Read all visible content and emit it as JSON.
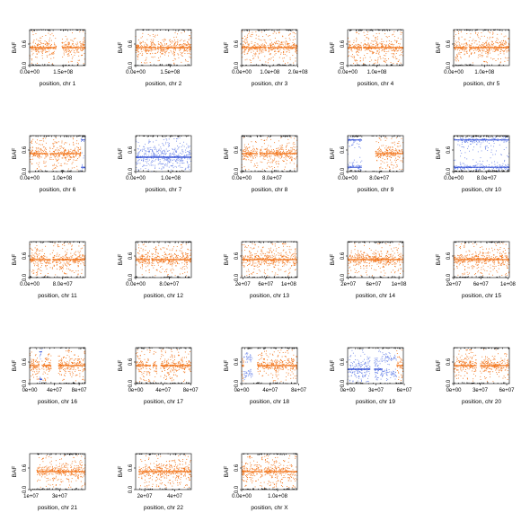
{
  "colors": {
    "orange": "#f27318",
    "blue": "#6b85e8",
    "black": "#000000",
    "axis": "#000000"
  },
  "chart_data": [
    {
      "type": "scatter",
      "chrom": "1",
      "xlabel": "position, chr 1",
      "ylabel": "BAF",
      "xlim": [
        0,
        250000000
      ],
      "ylim": [
        0,
        1
      ],
      "yticks": [
        0,
        0.6
      ],
      "yticklabels": [
        "0.0",
        "0.6"
      ],
      "xticks": [
        0,
        150000000
      ],
      "xticklabels": [
        "0.0e+00",
        "1.5e+08"
      ],
      "segments": [
        {
          "start": 0,
          "end": 120000000,
          "state": "het"
        },
        {
          "start": 120000000,
          "end": 145000000,
          "state": "gap"
        },
        {
          "start": 145000000,
          "end": 250000000,
          "state": "het"
        }
      ]
    },
    {
      "type": "scatter",
      "chrom": "2",
      "xlabel": "position, chr 2",
      "ylabel": "BAF",
      "xlim": [
        0,
        243000000
      ],
      "ylim": [
        0,
        1
      ],
      "yticks": [
        0,
        0.6
      ],
      "yticklabels": [
        "0.0",
        "0.6"
      ],
      "xticks": [
        0,
        150000000
      ],
      "xticklabels": [
        "0.0e+00",
        "1.5e+08"
      ],
      "segments": [
        {
          "start": 0,
          "end": 90000000,
          "state": "het"
        },
        {
          "start": 90000000,
          "end": 95000000,
          "state": "gap"
        },
        {
          "start": 95000000,
          "end": 243000000,
          "state": "het"
        }
      ]
    },
    {
      "type": "scatter",
      "chrom": "3",
      "xlabel": "position, chr 3",
      "ylabel": "BAF",
      "xlim": [
        0,
        198000000
      ],
      "ylim": [
        0,
        1
      ],
      "yticks": [
        0,
        0.6
      ],
      "yticklabels": [
        "0.0",
        "0.6"
      ],
      "xticks": [
        0,
        100000000,
        200000000
      ],
      "xticklabels": [
        "0.0e+00",
        "1.0e+08",
        "2.0e+08"
      ],
      "segments": [
        {
          "start": 0,
          "end": 88000000,
          "state": "het"
        },
        {
          "start": 88000000,
          "end": 93000000,
          "state": "gap"
        },
        {
          "start": 93000000,
          "end": 198000000,
          "state": "het"
        }
      ]
    },
    {
      "type": "scatter",
      "chrom": "4",
      "xlabel": "position, chr 4",
      "ylabel": "BAF",
      "xlim": [
        0,
        191000000
      ],
      "ylim": [
        0,
        1
      ],
      "yticks": [
        0,
        0.6
      ],
      "yticklabels": [
        "0.0",
        "0.6"
      ],
      "xticks": [
        0,
        100000000
      ],
      "xticklabels": [
        "0.0e+00",
        "1.0e+08"
      ],
      "segments": [
        {
          "start": 0,
          "end": 48000000,
          "state": "het"
        },
        {
          "start": 48000000,
          "end": 52000000,
          "state": "gap"
        },
        {
          "start": 52000000,
          "end": 191000000,
          "state": "het"
        }
      ]
    },
    {
      "type": "scatter",
      "chrom": "5",
      "xlabel": "position, chr 5",
      "ylabel": "BAF",
      "xlim": [
        0,
        181000000
      ],
      "ylim": [
        0,
        1
      ],
      "yticks": [
        0,
        0.6
      ],
      "yticklabels": [
        "0.0",
        "0.6"
      ],
      "xticks": [
        0,
        100000000
      ],
      "xticklabels": [
        "0.0e+00",
        "1.0e+08"
      ],
      "segments": [
        {
          "start": 0,
          "end": 45000000,
          "state": "het"
        },
        {
          "start": 45000000,
          "end": 50000000,
          "state": "gap"
        },
        {
          "start": 50000000,
          "end": 181000000,
          "state": "het"
        }
      ]
    },
    {
      "type": "scatter",
      "chrom": "6",
      "xlabel": "position, chr 6",
      "ylabel": "BAF",
      "xlim": [
        0,
        171000000
      ],
      "ylim": [
        0,
        1
      ],
      "yticks": [
        0,
        0.6
      ],
      "yticklabels": [
        "0.0",
        "0.6"
      ],
      "xticks": [
        0,
        100000000
      ],
      "xticklabels": [
        "0.0e+00",
        "1.0e+08"
      ],
      "segments": [
        {
          "start": 0,
          "end": 56000000,
          "state": "het"
        },
        {
          "start": 56000000,
          "end": 62000000,
          "state": "gap"
        },
        {
          "start": 62000000,
          "end": 158000000,
          "state": "het"
        },
        {
          "start": 158000000,
          "end": 171000000,
          "state": "loh"
        }
      ]
    },
    {
      "type": "scatter",
      "chrom": "7",
      "xlabel": "position, chr 7",
      "ylabel": "BAF",
      "xlim": [
        0,
        159000000
      ],
      "ylim": [
        0,
        1
      ],
      "yticks": [
        0,
        0.6
      ],
      "yticklabels": [
        "0.0",
        "0.6"
      ],
      "xticks": [
        0,
        100000000
      ],
      "xticklabels": [
        "0.0e+00",
        "1.0e+08"
      ],
      "segments": [
        {
          "start": 0,
          "end": 159000000,
          "state": "blue_mid"
        }
      ]
    },
    {
      "type": "scatter",
      "chrom": "8",
      "xlabel": "position, chr 8",
      "ylabel": "BAF",
      "xlim": [
        0,
        146000000
      ],
      "ylim": [
        0,
        1
      ],
      "yticks": [
        0,
        0.6
      ],
      "yticklabels": [
        "0.0",
        "0.6"
      ],
      "xticks": [
        0,
        80000000
      ],
      "xticklabels": [
        "0.0e+00",
        "8.0e+07"
      ],
      "segments": [
        {
          "start": 0,
          "end": 42000000,
          "state": "het"
        },
        {
          "start": 42000000,
          "end": 47000000,
          "state": "gap"
        },
        {
          "start": 47000000,
          "end": 146000000,
          "state": "het"
        }
      ]
    },
    {
      "type": "scatter",
      "chrom": "9",
      "xlabel": "position, chr 9",
      "ylabel": "BAF",
      "xlim": [
        0,
        141000000
      ],
      "ylim": [
        0,
        1
      ],
      "yticks": [
        0,
        0.6
      ],
      "yticklabels": [
        "0.0",
        "0.6"
      ],
      "xticks": [
        0,
        80000000
      ],
      "xticklabels": [
        "0.0e+00",
        "8.0e+07"
      ],
      "segments": [
        {
          "start": 0,
          "end": 36000000,
          "state": "loh"
        },
        {
          "start": 36000000,
          "end": 70000000,
          "state": "gap"
        },
        {
          "start": 70000000,
          "end": 141000000,
          "state": "het"
        }
      ]
    },
    {
      "type": "scatter",
      "chrom": "10",
      "xlabel": "position, chr 10",
      "ylabel": "BAF",
      "xlim": [
        0,
        135000000
      ],
      "ylim": [
        0,
        1
      ],
      "yticks": [
        0,
        0.6
      ],
      "yticklabels": [
        "0.0",
        "0.6"
      ],
      "xticks": [
        0,
        80000000
      ],
      "xticklabels": [
        "0.0e+00",
        "8.0e+07"
      ],
      "segments": [
        {
          "start": 0,
          "end": 135000000,
          "state": "loh"
        }
      ]
    },
    {
      "type": "scatter",
      "chrom": "11",
      "xlabel": "position, chr 11",
      "ylabel": "BAF",
      "xlim": [
        0,
        135000000
      ],
      "ylim": [
        0,
        1
      ],
      "yticks": [
        0,
        0.6
      ],
      "yticklabels": [
        "0.0",
        "0.6"
      ],
      "xticks": [
        0,
        80000000
      ],
      "xticklabels": [
        "0.0e+00",
        "8.0e+07"
      ],
      "segments": [
        {
          "start": 0,
          "end": 51000000,
          "state": "het"
        },
        {
          "start": 51000000,
          "end": 55000000,
          "state": "gap"
        },
        {
          "start": 55000000,
          "end": 135000000,
          "state": "het"
        }
      ]
    },
    {
      "type": "scatter",
      "chrom": "12",
      "xlabel": "position, chr 12",
      "ylabel": "BAF",
      "xlim": [
        0,
        133000000
      ],
      "ylim": [
        0,
        1
      ],
      "yticks": [
        0,
        0.6
      ],
      "yticklabels": [
        "0.0",
        "0.6"
      ],
      "xticks": [
        0,
        80000000
      ],
      "xticklabels": [
        "0.0e+00",
        "8.0e+07"
      ],
      "segments": [
        {
          "start": 0,
          "end": 34000000,
          "state": "het"
        },
        {
          "start": 34000000,
          "end": 38000000,
          "state": "gap"
        },
        {
          "start": 38000000,
          "end": 133000000,
          "state": "het"
        }
      ]
    },
    {
      "type": "scatter",
      "chrom": "13",
      "xlabel": "position, chr 13",
      "ylabel": "BAF",
      "xlim": [
        18000000,
        115000000
      ],
      "ylim": [
        0,
        1
      ],
      "yticks": [
        0,
        0.6
      ],
      "yticklabels": [
        "0.0",
        "0.6"
      ],
      "xticks": [
        20000000,
        60000000,
        100000000
      ],
      "xticklabels": [
        "2e+07",
        "6e+07",
        "1e+08"
      ],
      "segments": [
        {
          "start": 18000000,
          "end": 115000000,
          "state": "het"
        }
      ]
    },
    {
      "type": "scatter",
      "chrom": "14",
      "xlabel": "position, chr 14",
      "ylabel": "BAF",
      "xlim": [
        19000000,
        107000000
      ],
      "ylim": [
        0,
        1
      ],
      "yticks": [
        0,
        0.6
      ],
      "yticklabels": [
        "0.0",
        "0.6"
      ],
      "xticks": [
        20000000,
        60000000,
        100000000
      ],
      "xticklabels": [
        "2e+07",
        "6e+07",
        "1e+08"
      ],
      "segments": [
        {
          "start": 19000000,
          "end": 107000000,
          "state": "het"
        }
      ]
    },
    {
      "type": "scatter",
      "chrom": "15",
      "xlabel": "position, chr 15",
      "ylabel": "BAF",
      "xlim": [
        20000000,
        102000000
      ],
      "ylim": [
        0,
        1
      ],
      "yticks": [
        0,
        0.6
      ],
      "yticklabels": [
        "0.0",
        "0.6"
      ],
      "xticks": [
        20000000,
        60000000,
        100000000
      ],
      "xticklabels": [
        "2e+07",
        "6e+07",
        "1e+08"
      ],
      "segments": [
        {
          "start": 20000000,
          "end": 102000000,
          "state": "het"
        }
      ]
    },
    {
      "type": "scatter",
      "chrom": "16",
      "xlabel": "position, chr 16",
      "ylabel": "BAF",
      "xlim": [
        0,
        90000000
      ],
      "ylim": [
        0,
        1
      ],
      "yticks": [
        0,
        0.6
      ],
      "yticklabels": [
        "0.0",
        "0.6"
      ],
      "xticks": [
        0,
        40000000,
        80000000
      ],
      "xticklabels": [
        "0e+00",
        "4e+07",
        "8e+07"
      ],
      "segments": [
        {
          "start": 0,
          "end": 16000000,
          "state": "het"
        },
        {
          "start": 16000000,
          "end": 20000000,
          "state": "loh"
        },
        {
          "start": 20000000,
          "end": 35000000,
          "state": "het"
        },
        {
          "start": 35000000,
          "end": 46000000,
          "state": "gap"
        },
        {
          "start": 46000000,
          "end": 90000000,
          "state": "het"
        }
      ]
    },
    {
      "type": "scatter",
      "chrom": "17",
      "xlabel": "position, chr 17",
      "ylabel": "BAF",
      "xlim": [
        0,
        81000000
      ],
      "ylim": [
        0,
        1
      ],
      "yticks": [
        0,
        0.6
      ],
      "yticklabels": [
        "0.0",
        "0.6"
      ],
      "xticks": [
        0,
        40000000,
        80000000
      ],
      "xticklabels": [
        "0e+00",
        "4e+07",
        "8e+07"
      ],
      "segments": [
        {
          "start": 0,
          "end": 22000000,
          "state": "het"
        },
        {
          "start": 22000000,
          "end": 25000000,
          "state": "gap"
        },
        {
          "start": 25000000,
          "end": 31000000,
          "state": "het"
        },
        {
          "start": 31000000,
          "end": 36000000,
          "state": "gap"
        },
        {
          "start": 36000000,
          "end": 81000000,
          "state": "het"
        }
      ]
    },
    {
      "type": "scatter",
      "chrom": "18",
      "xlabel": "position, chr 18",
      "ylabel": "BAF",
      "xlim": [
        0,
        78000000
      ],
      "ylim": [
        0,
        1
      ],
      "yticks": [
        0,
        0.6
      ],
      "yticklabels": [
        "0.0",
        "0.6"
      ],
      "xticks": [
        0,
        40000000,
        80000000
      ],
      "xticklabels": [
        "0e+00",
        "4e+07",
        "8e+07"
      ],
      "segments": [
        {
          "start": 0,
          "end": 3000000,
          "state": "het"
        },
        {
          "start": 3000000,
          "end": 15000000,
          "state": "blue_split"
        },
        {
          "start": 15000000,
          "end": 22000000,
          "state": "gap"
        },
        {
          "start": 22000000,
          "end": 78000000,
          "state": "het"
        }
      ]
    },
    {
      "type": "scatter",
      "chrom": "19",
      "xlabel": "position, chr 19",
      "ylabel": "BAF",
      "xlim": [
        0,
        59000000
      ],
      "ylim": [
        0,
        1
      ],
      "yticks": [
        0,
        0.6
      ],
      "yticklabels": [
        "0.0",
        "0.6"
      ],
      "xticks": [
        0,
        30000000,
        60000000
      ],
      "xticklabels": [
        "0e+00",
        "3e+07",
        "6e+07"
      ],
      "segments": [
        {
          "start": 0,
          "end": 24000000,
          "state": "blue_mid"
        },
        {
          "start": 24000000,
          "end": 28000000,
          "state": "gap"
        },
        {
          "start": 28000000,
          "end": 37000000,
          "state": "blue_mid"
        },
        {
          "start": 37000000,
          "end": 52000000,
          "state": "blue_split"
        },
        {
          "start": 52000000,
          "end": 59000000,
          "state": "het"
        }
      ]
    },
    {
      "type": "scatter",
      "chrom": "20",
      "xlabel": "position, chr 20",
      "ylabel": "BAF",
      "xlim": [
        0,
        63000000
      ],
      "ylim": [
        0,
        1
      ],
      "yticks": [
        0,
        0.6
      ],
      "yticklabels": [
        "0.0",
        "0.6"
      ],
      "xticks": [
        0,
        30000000,
        60000000
      ],
      "xticklabels": [
        "0e+00",
        "3e+07",
        "6e+07"
      ],
      "segments": [
        {
          "start": 0,
          "end": 26000000,
          "state": "het"
        },
        {
          "start": 26000000,
          "end": 30000000,
          "state": "gap"
        },
        {
          "start": 30000000,
          "end": 63000000,
          "state": "het"
        }
      ]
    },
    {
      "type": "scatter",
      "chrom": "21",
      "xlabel": "position, chr 21",
      "ylabel": "BAF",
      "xlim": [
        9000000,
        48000000
      ],
      "ylim": [
        0,
        1
      ],
      "yticks": [
        0,
        0.6
      ],
      "yticklabels": [
        "0.0",
        "0.6"
      ],
      "xticks": [
        10000000,
        30000000
      ],
      "xticklabels": [
        "1e+07",
        "3e+07"
      ],
      "segments": [
        {
          "start": 9000000,
          "end": 14000000,
          "state": "gap"
        },
        {
          "start": 14000000,
          "end": 48000000,
          "state": "het"
        }
      ]
    },
    {
      "type": "scatter",
      "chrom": "22",
      "xlabel": "position, chr 22",
      "ylabel": "BAF",
      "xlim": [
        14000000,
        51000000
      ],
      "ylim": [
        0,
        1
      ],
      "yticks": [
        0,
        0.6
      ],
      "yticklabels": [
        "0.0",
        "0.6"
      ],
      "xticks": [
        20000000,
        40000000
      ],
      "xticklabels": [
        "2e+07",
        "4e+07"
      ],
      "segments": [
        {
          "start": 14000000,
          "end": 16000000,
          "state": "gap"
        },
        {
          "start": 16000000,
          "end": 51000000,
          "state": "het"
        }
      ]
    },
    {
      "type": "scatter",
      "chrom": "X",
      "xlabel": "position, chr X",
      "ylabel": "BAF",
      "xlim": [
        0,
        155000000
      ],
      "ylim": [
        0,
        1
      ],
      "yticks": [
        0,
        0.6
      ],
      "yticklabels": [
        "0.0",
        "0.6"
      ],
      "xticks": [
        0,
        100000000
      ],
      "xticklabels": [
        "0.0e+00",
        "1.0e+08"
      ],
      "segments": [
        {
          "start": 0,
          "end": 58000000,
          "state": "het"
        },
        {
          "start": 58000000,
          "end": 62000000,
          "state": "gap"
        },
        {
          "start": 62000000,
          "end": 155000000,
          "state": "het"
        }
      ]
    }
  ]
}
